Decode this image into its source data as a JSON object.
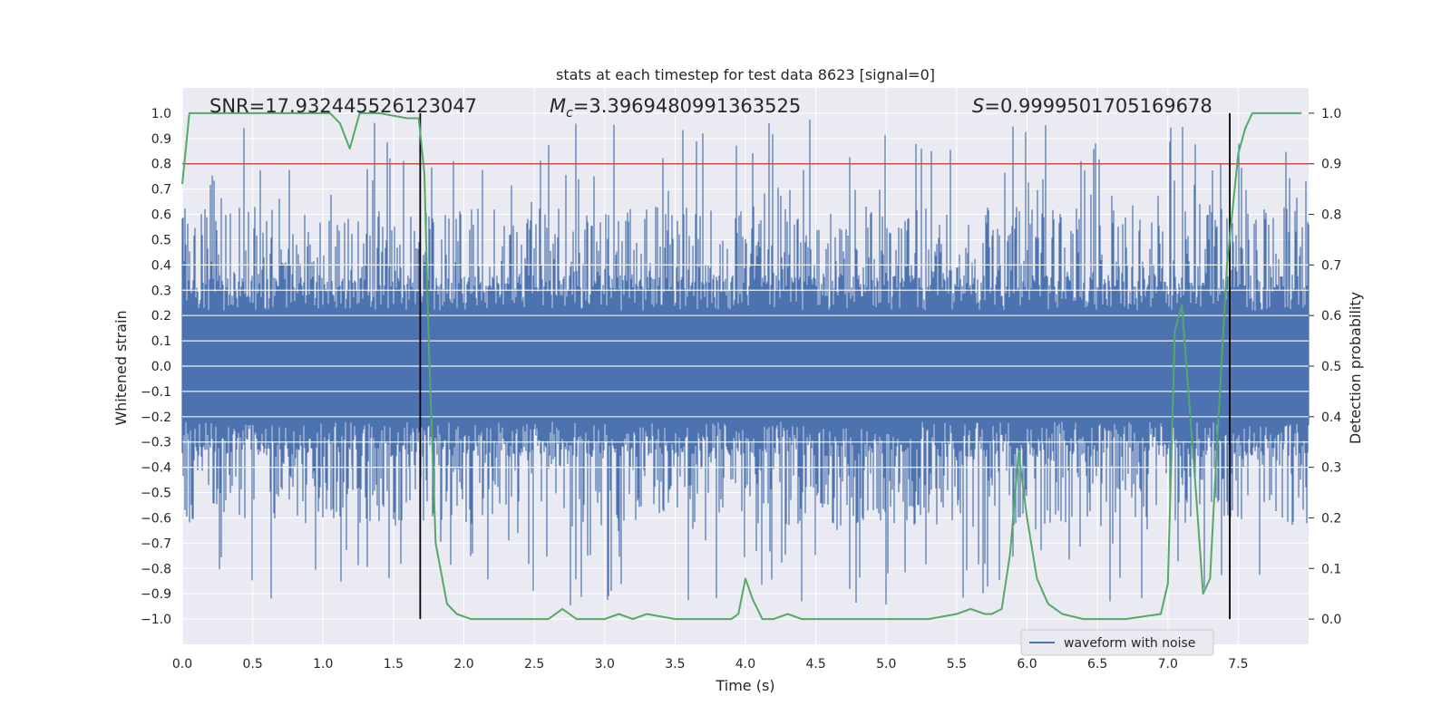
{
  "chart_data": {
    "type": "line",
    "title": "stats at each timestep for test data 8623 [signal=0]",
    "xlabel": "Time (s)",
    "ylabel": "Whitened strain",
    "y2label": "Detection probability",
    "xlim": [
      0.0,
      8.0
    ],
    "ylim": [
      -1.1,
      1.1
    ],
    "y2lim": [
      -0.05,
      1.05
    ],
    "xticks": [
      "0.0",
      "0.5",
      "1.0",
      "1.5",
      "2.0",
      "2.5",
      "3.0",
      "3.5",
      "4.0",
      "4.5",
      "5.0",
      "5.5",
      "6.0",
      "6.5",
      "7.0",
      "7.5"
    ],
    "yticks": [
      "1.0",
      "0.9",
      "0.8",
      "0.7",
      "0.6",
      "0.5",
      "0.4",
      "0.3",
      "0.2",
      "0.1",
      "0.0",
      "−0.1",
      "−0.2",
      "−0.3",
      "−0.4",
      "−0.5",
      "−0.6",
      "−0.7",
      "−0.8",
      "−0.9",
      "−1.0"
    ],
    "y2ticks": [
      "1.0",
      "0.9",
      "0.8",
      "0.7",
      "0.6",
      "0.5",
      "0.4",
      "0.3",
      "0.2",
      "0.1",
      "0.0"
    ],
    "annotations": {
      "snr": "SNR=17.932445526123047",
      "mc_symbol": "M",
      "mc_sub": "c",
      "mc_value": "=3.3969480991363525",
      "s_symbol": "S",
      "s_value": "=0.9999501705169678"
    },
    "series": [
      {
        "name": "waveform with noise",
        "axis": "left",
        "color": "#4c72b0",
        "description": "dense whitened strain noise, core approx ±0.25, spikes up to ±1.0",
        "envelope_ylim": [
          -1.0,
          1.0
        ]
      },
      {
        "name": "detection probability",
        "axis": "right",
        "color": "#55a868",
        "x": [
          0.0,
          0.05,
          0.1,
          0.3,
          0.5,
          0.7,
          0.9,
          1.05,
          1.12,
          1.19,
          1.26,
          1.4,
          1.6,
          1.68,
          1.72,
          1.75,
          1.8,
          1.88,
          1.95,
          2.05,
          2.3,
          2.6,
          2.7,
          2.8,
          3.0,
          3.1,
          3.2,
          3.3,
          3.5,
          3.7,
          3.9,
          3.95,
          4.0,
          4.05,
          4.12,
          4.2,
          4.3,
          4.4,
          4.6,
          5.0,
          5.3,
          5.5,
          5.6,
          5.7,
          5.75,
          5.82,
          5.88,
          5.94,
          6.0,
          6.07,
          6.15,
          6.25,
          6.4,
          6.7,
          6.95,
          7.0,
          7.05,
          7.1,
          7.2,
          7.25,
          7.3,
          7.35,
          7.42,
          7.5,
          7.55,
          7.6,
          7.7,
          7.95
        ],
        "y": [
          0.86,
          1.0,
          1.0,
          1.0,
          1.0,
          1.0,
          1.0,
          1.0,
          0.98,
          0.93,
          1.0,
          1.0,
          0.99,
          0.99,
          0.88,
          0.55,
          0.15,
          0.03,
          0.01,
          0.0,
          0.0,
          0.0,
          0.02,
          0.0,
          0.0,
          0.01,
          0.0,
          0.01,
          0.0,
          0.0,
          0.0,
          0.01,
          0.08,
          0.04,
          0.0,
          0.0,
          0.01,
          0.0,
          0.0,
          0.0,
          0.0,
          0.01,
          0.02,
          0.01,
          0.01,
          0.02,
          0.13,
          0.33,
          0.2,
          0.08,
          0.03,
          0.01,
          0.0,
          0.0,
          0.01,
          0.07,
          0.57,
          0.62,
          0.25,
          0.05,
          0.08,
          0.35,
          0.7,
          0.92,
          0.97,
          1.0,
          1.0,
          1.0
        ]
      }
    ],
    "threshold": {
      "axis": "right",
      "value": 0.9,
      "color": "#c44e52"
    },
    "vlines": {
      "x": [
        1.69,
        7.44
      ],
      "color": "#000000",
      "y2range": [
        0.0,
        1.0
      ]
    },
    "legend": {
      "position": "bottom-right",
      "entries": [
        "waveform with noise"
      ]
    },
    "grid": true,
    "colors": {
      "background": "#eaeaf2",
      "grid": "#ffffff"
    }
  }
}
